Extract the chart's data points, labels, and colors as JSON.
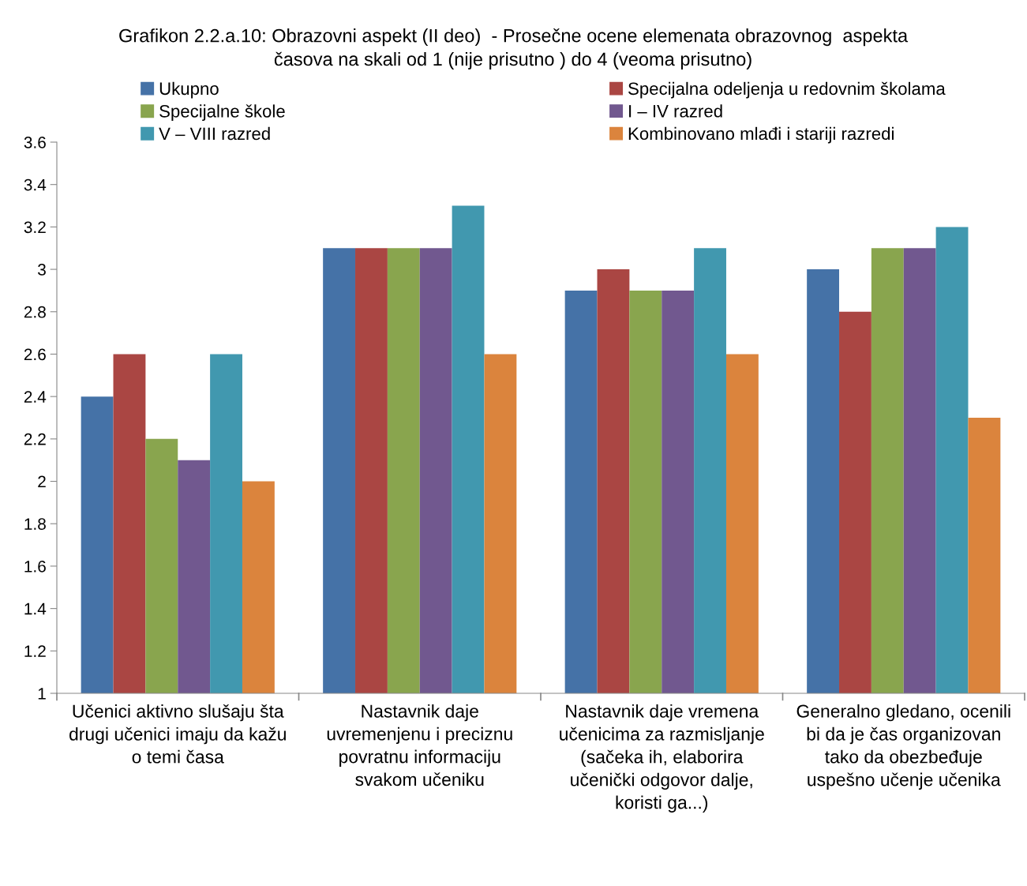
{
  "chart_data": {
    "type": "bar",
    "title": "Grafikon 2.2.a.10: Obrazovni aspekt (II deo)  - Prosečne ocene elemenata obrazovnog  aspekta\nčasova na skali od 1 (nije prisutno ) do 4 (veoma prisutno)",
    "categories": [
      "Učenici aktivno slušaju šta\ndrugi učenici imaju da kažu\no temi časa",
      "Nastavnik daje\nuvremenjenu i preciznu\npovratnu informaciju\nsvakom učeniku",
      "Nastavnik daje vremena\nučenicima za razmisljanje\n(sačeka ih, elaborira\nučenički odgovor dalje,\nkoristi ga...)",
      "Generalno gledano, ocenili\nbi da je čas organizovan\ntako da obezbeđuje\nuspešno učenje učenika"
    ],
    "series": [
      {
        "name": "Ukupno",
        "color": "#4572a7",
        "values": [
          2.4,
          3.1,
          2.9,
          3.0
        ]
      },
      {
        "name": "Specijalna odeljenja u redovnim školama",
        "color": "#aa4643",
        "values": [
          2.6,
          3.1,
          3.0,
          2.8
        ]
      },
      {
        "name": "Specijalne škole",
        "color": "#89a54e",
        "values": [
          2.2,
          3.1,
          2.9,
          3.1
        ]
      },
      {
        "name": "I – IV razred",
        "color": "#71588f",
        "values": [
          2.1,
          3.1,
          2.9,
          3.1
        ]
      },
      {
        "name": "V – VIII razred",
        "color": "#4198af",
        "values": [
          2.6,
          3.3,
          3.1,
          3.2
        ]
      },
      {
        "name": "Kombinovano mlađi i stariji razredi",
        "color": "#db843d",
        "values": [
          2.0,
          2.6,
          2.6,
          2.3
        ]
      }
    ],
    "ylim": [
      1,
      3.6
    ],
    "yticks": [
      1,
      1.2,
      1.4,
      1.6,
      1.8,
      2,
      2.2,
      2.4,
      2.6,
      2.8,
      3,
      3.2,
      3.4,
      3.6
    ],
    "grid": false,
    "legend": "top"
  }
}
